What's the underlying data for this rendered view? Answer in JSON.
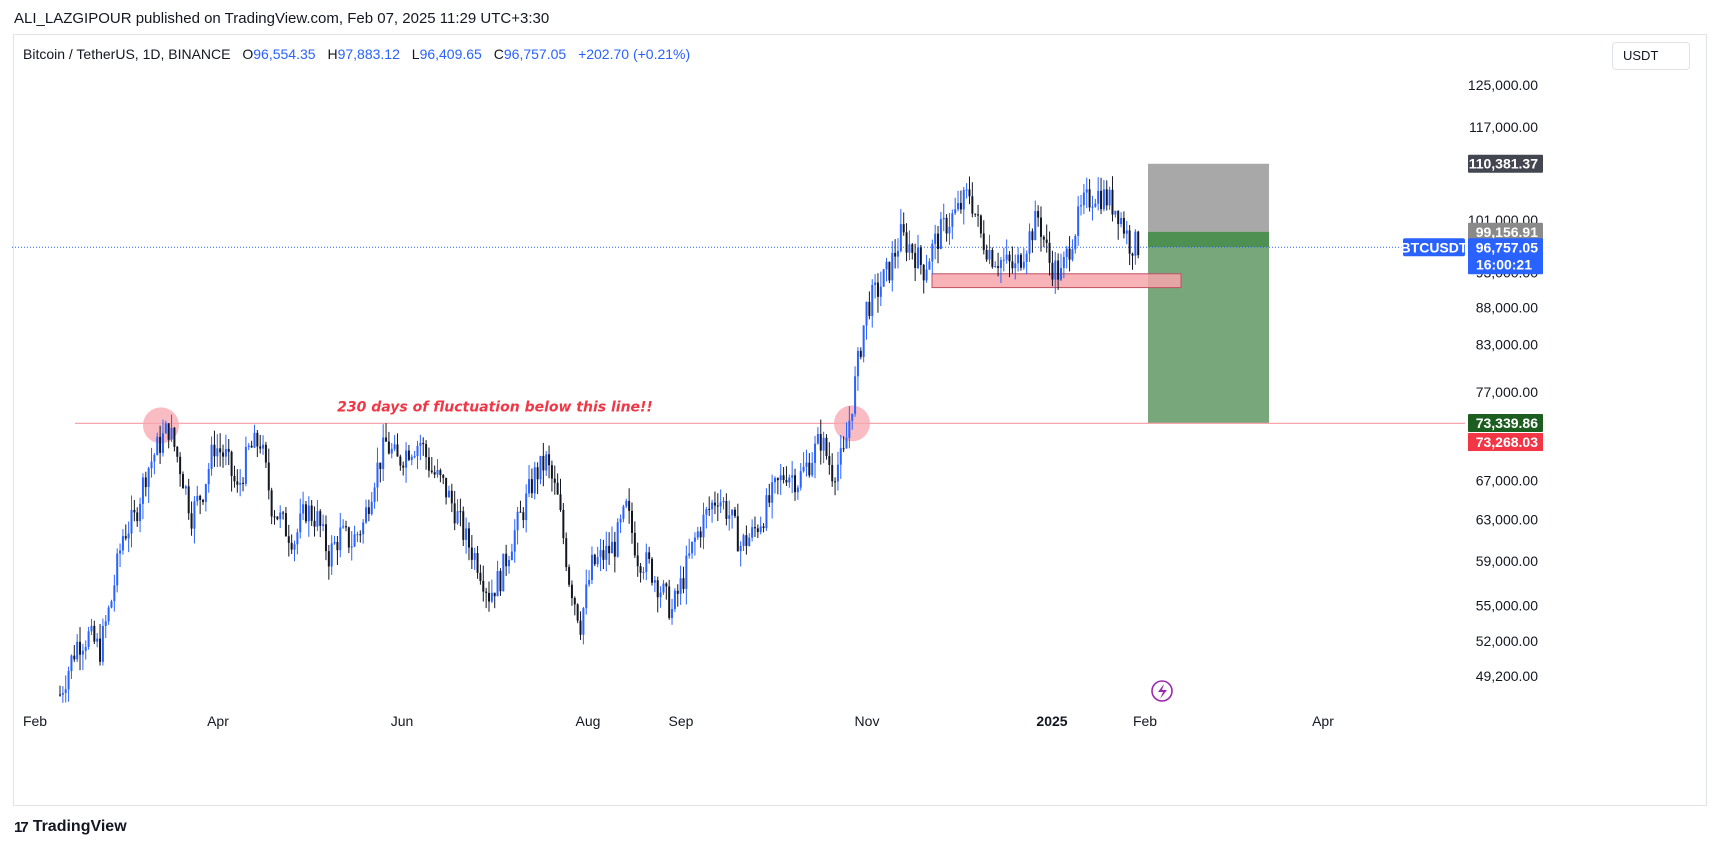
{
  "publisher": "ALI_LAZGIPOUR published on TradingView.com, Feb 07, 2025 11:29 UTC+3:30",
  "legend": {
    "symbol": "Bitcoin / TetherUS, 1D, BINANCE",
    "o_label": "O",
    "o_value": "96,554.35",
    "h_label": "H",
    "h_value": "97,883.12",
    "l_label": "L",
    "l_value": "96,409.65",
    "c_label": "C",
    "c_value": "96,757.05",
    "change": "+202.70 (+0.21%)"
  },
  "currency": "USDT",
  "footer": {
    "brand": "TradingView",
    "logo_icon": "tradingview-logo-icon"
  },
  "colors": {
    "up": "#2962ff",
    "down": "#131722",
    "support_line": "#f7a6ad",
    "zone": "#f7a6ad",
    "stop_zone": "#9e9e9e",
    "target_zone": "#6a9d6e",
    "entry_zone": "#2e7d32",
    "price_badge": "#2962ff",
    "target_badge": "#1b5e20",
    "stop_badge": "#f23645",
    "top_badge": "#434651",
    "entry_badge": "#8a8a8a"
  },
  "chart_data": {
    "type": "candlestick",
    "symbol_label": "BTCUSDT",
    "x_ticks": [
      "Feb",
      "Apr",
      "Jun",
      "Aug",
      "Sep",
      "Nov",
      "2025",
      "Feb",
      "Apr"
    ],
    "y_ticks": [
      "125,000.00",
      "117,000.00",
      "101,000.00",
      "93,000.00",
      "88,000.00",
      "83,000.00",
      "77,000.00",
      "67,000.00",
      "63,000.00",
      "59,000.00",
      "55,000.00",
      "52,000.00",
      "49,200.00"
    ],
    "y_tick_values": [
      125000,
      117000,
      101000,
      93000,
      88000,
      83000,
      77000,
      67000,
      63000,
      59000,
      55000,
      52000,
      49200
    ],
    "price_scale": "log",
    "ylim": [
      46500,
      130000
    ],
    "annotation": "230 days of fluctuation below this line!!",
    "support_level": 73300,
    "zone": {
      "low": 90800,
      "high": 92800
    },
    "position": {
      "stop": 110381.37,
      "entry": 99156.91,
      "current": 96757.05,
      "target": 73339.86,
      "target2": 73268.03
    },
    "badges": {
      "stop": "110,381.37",
      "entry": "99,156.91",
      "current": "96,757.05",
      "countdown": "16:00:21",
      "target": "73,339.86",
      "target2": "73,268.03"
    },
    "price_path": [
      [
        0,
        47800
      ],
      [
        6,
        51800
      ],
      [
        10,
        52400
      ],
      [
        14,
        51300
      ],
      [
        18,
        55500
      ],
      [
        22,
        61500
      ],
      [
        26,
        63000
      ],
      [
        30,
        67800
      ],
      [
        34,
        70500
      ],
      [
        38,
        72800
      ],
      [
        42,
        68500
      ],
      [
        46,
        63500
      ],
      [
        50,
        66000
      ],
      [
        54,
        70800
      ],
      [
        58,
        69500
      ],
      [
        62,
        65800
      ],
      [
        66,
        70200
      ],
      [
        70,
        71300
      ],
      [
        74,
        64500
      ],
      [
        78,
        62500
      ],
      [
        82,
        61000
      ],
      [
        86,
        64000
      ],
      [
        90,
        63000
      ],
      [
        94,
        59500
      ],
      [
        98,
        61500
      ],
      [
        102,
        60800
      ],
      [
        106,
        62500
      ],
      [
        110,
        67500
      ],
      [
        114,
        71000
      ],
      [
        118,
        69000
      ],
      [
        122,
        70500
      ],
      [
        126,
        71200
      ],
      [
        130,
        68000
      ],
      [
        134,
        66500
      ],
      [
        138,
        64000
      ],
      [
        142,
        61000
      ],
      [
        146,
        59000
      ],
      [
        150,
        56000
      ],
      [
        154,
        57500
      ],
      [
        158,
        61000
      ],
      [
        162,
        64000
      ],
      [
        166,
        67500
      ],
      [
        170,
        69000
      ],
      [
        174,
        65000
      ],
      [
        178,
        57500
      ],
      [
        182,
        53500
      ],
      [
        186,
        58500
      ],
      [
        190,
        59500
      ],
      [
        194,
        60500
      ],
      [
        198,
        64000
      ],
      [
        202,
        59500
      ],
      [
        206,
        58500
      ],
      [
        210,
        56500
      ],
      [
        214,
        54500
      ],
      [
        218,
        57500
      ],
      [
        222,
        61000
      ],
      [
        226,
        63500
      ],
      [
        230,
        65500
      ],
      [
        234,
        63500
      ],
      [
        238,
        60500
      ],
      [
        242,
        61500
      ],
      [
        246,
        63500
      ],
      [
        250,
        66000
      ],
      [
        254,
        68000
      ],
      [
        258,
        67000
      ],
      [
        262,
        69000
      ],
      [
        266,
        71500
      ],
      [
        270,
        68000
      ],
      [
        274,
        69500
      ],
      [
        278,
        78000
      ],
      [
        282,
        88000
      ],
      [
        286,
        90500
      ],
      [
        290,
        93500
      ],
      [
        294,
        98500
      ],
      [
        298,
        96500
      ],
      [
        302,
        93500
      ],
      [
        306,
        97500
      ],
      [
        310,
        100500
      ],
      [
        314,
        102500
      ],
      [
        318,
        105500
      ],
      [
        322,
        98500
      ],
      [
        326,
        95500
      ],
      [
        330,
        94500
      ],
      [
        334,
        93500
      ],
      [
        338,
        97500
      ],
      [
        342,
        101500
      ],
      [
        346,
        94500
      ],
      [
        350,
        92500
      ],
      [
        354,
        98500
      ],
      [
        358,
        103500
      ],
      [
        362,
        105500
      ],
      [
        366,
        104500
      ],
      [
        370,
        102500
      ],
      [
        374,
        97500
      ],
      [
        378,
        96757
      ]
    ]
  }
}
